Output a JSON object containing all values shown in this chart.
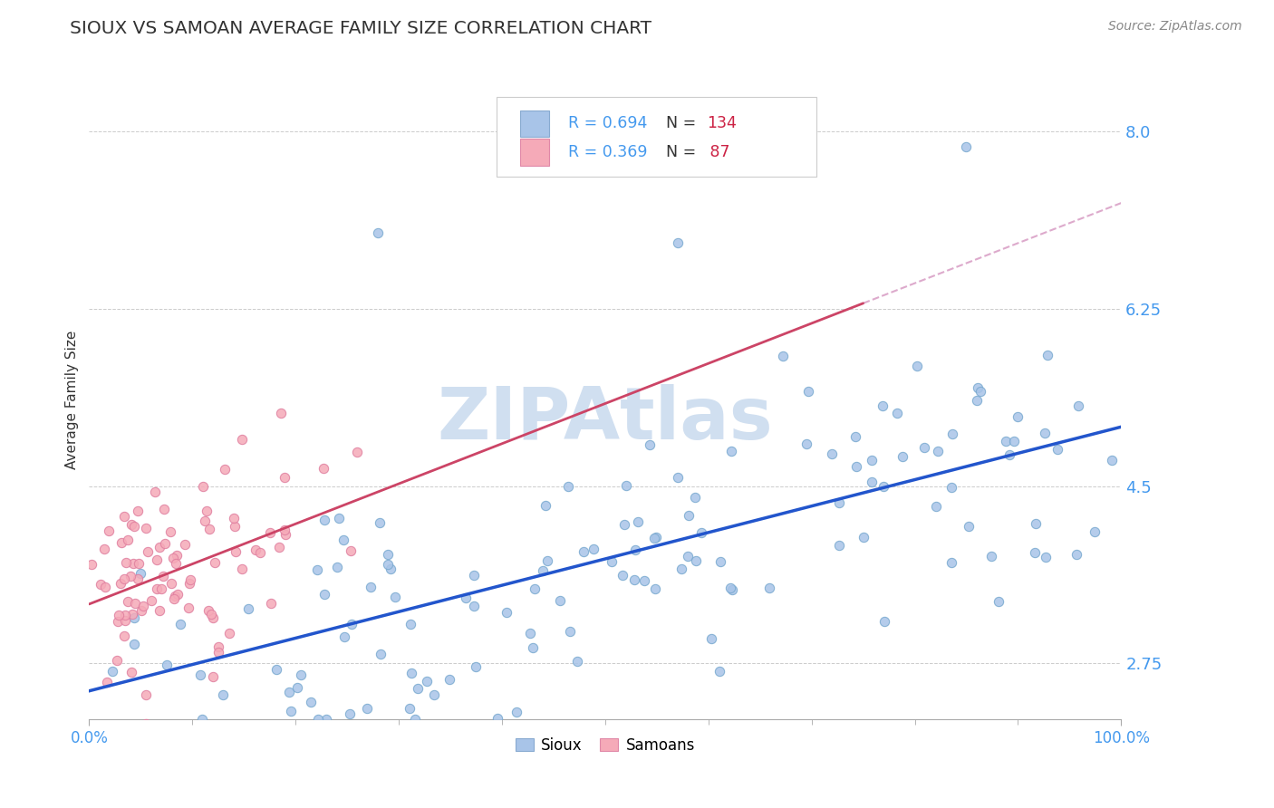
{
  "title": "SIOUX VS SAMOAN AVERAGE FAMILY SIZE CORRELATION CHART",
  "source": "Source: ZipAtlas.com",
  "ylabel": "Average Family Size",
  "xlim": [
    0,
    1
  ],
  "ylim": [
    2.2,
    8.5
  ],
  "yticks": [
    2.75,
    4.5,
    6.25,
    8.0
  ],
  "xtick_labels": [
    "0.0%",
    "100.0%"
  ],
  "sioux_color": "#a8c4e8",
  "samoan_color": "#f5aab8",
  "sioux_line_color": "#2255cc",
  "samoan_line_color": "#cc4466",
  "samoan_line_dashed_color": "#ddaacc",
  "watermark": "ZIPAtlas",
  "watermark_color": "#d0dff0",
  "background_color": "#ffffff",
  "grid_color": "#cccccc",
  "R_sioux": 0.694,
  "N_sioux": 134,
  "R_samoan": 0.369,
  "N_samoan": 87,
  "title_color": "#333333",
  "axis_label_color": "#333333",
  "tick_color_y": "#4499ee",
  "legend_R_color": "#4499ee",
  "legend_N_color": "#cc2244"
}
